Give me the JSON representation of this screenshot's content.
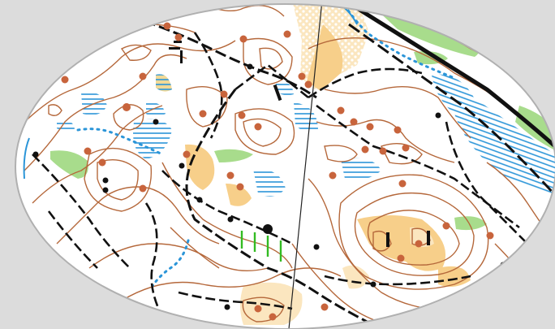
{
  "map": {
    "colors": {
      "background": "#dcdcdc",
      "paper": "#ffffff",
      "contour": "#b5683b",
      "knoll": "#c8643c",
      "path": "#111111",
      "water": "#2b95d8",
      "marsh": "#2b95d8",
      "vegetation_green": "#a8dc8c",
      "open_land": "#f7cf8a",
      "rough_open": "#fbe6bf",
      "magnetic_north": "#222222",
      "fence": "#33bb22",
      "frame": "#b0b0b0"
    },
    "icons": [
      "knoll-dot",
      "boulder-dot",
      "marsh-hatch",
      "stream-dotted-line",
      "magnetic-north-line"
    ]
  }
}
